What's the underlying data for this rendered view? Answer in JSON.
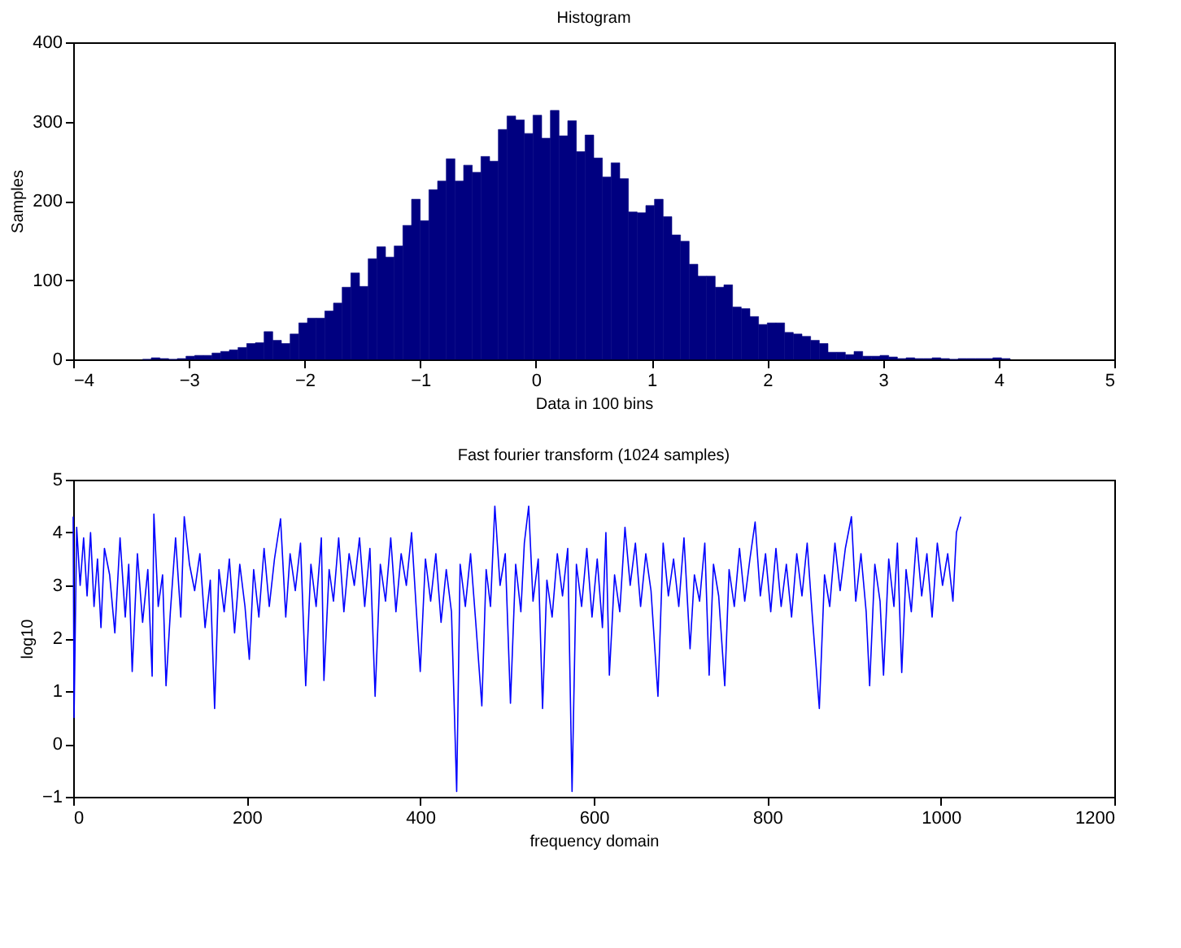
{
  "chart_data": [
    {
      "type": "histogram",
      "title": "Histogram",
      "xlabel": "Data in 100 bins",
      "ylabel": "Samples",
      "color": "#000080",
      "bins": [
        -3.4,
        -3.325,
        -3.25,
        -3.175,
        -3.1,
        -3.025,
        -2.95,
        -2.875,
        -2.8,
        -2.725,
        -2.65,
        -2.575,
        -2.5,
        -2.425,
        -2.35,
        -2.275,
        -2.2,
        -2.125,
        -2.05,
        -1.975,
        -1.9,
        -1.825,
        -1.75,
        -1.675,
        -1.6,
        -1.525,
        -1.45,
        -1.375,
        -1.3,
        -1.225,
        -1.15,
        -1.075,
        -1.0,
        -0.925,
        -0.85,
        -0.775,
        -0.7,
        -0.625,
        -0.55,
        -0.475,
        -0.4,
        -0.325,
        -0.25,
        -0.175,
        -0.1,
        -0.025,
        0.05,
        0.125,
        0.2,
        0.275,
        0.35,
        0.425,
        0.5,
        0.575,
        0.65,
        0.725,
        0.8,
        0.875,
        0.95,
        1.025,
        1.1,
        1.175,
        1.25,
        1.325,
        1.4,
        1.475,
        1.55,
        1.625,
        1.7,
        1.775,
        1.85,
        1.925,
        2.0,
        2.075,
        2.15,
        2.225,
        2.3,
        2.375,
        2.45,
        2.525,
        2.6,
        2.675,
        2.75,
        2.825,
        2.9,
        2.975,
        3.05,
        3.125,
        3.2,
        3.275,
        3.35,
        3.425,
        3.5,
        3.575,
        3.65,
        3.725,
        3.8,
        3.875,
        3.95,
        4.025,
        4.1
      ],
      "values": [
        0,
        2,
        1,
        0,
        1,
        4,
        5,
        5,
        8,
        10,
        12,
        15,
        20,
        21,
        35,
        24,
        20,
        32,
        46,
        52,
        52,
        61,
        71,
        91,
        109,
        92,
        127,
        142,
        129,
        143,
        169,
        202,
        175,
        214,
        225,
        253,
        225,
        245,
        236,
        256,
        250,
        290,
        307,
        302,
        285,
        308,
        279,
        314,
        282,
        301,
        262,
        283,
        254,
        230,
        248,
        228,
        186,
        185,
        194,
        202,
        180,
        157,
        149,
        120,
        105,
        105,
        91,
        94,
        66,
        64,
        54,
        44,
        46,
        46,
        34,
        32,
        29,
        24,
        20,
        9,
        9,
        6,
        10,
        4,
        4,
        5,
        3,
        1,
        2,
        1,
        1,
        2,
        1,
        0,
        1,
        1,
        1,
        1,
        2,
        1
      ],
      "xlim": [
        -4,
        5
      ],
      "xticks": [
        -4,
        -3,
        -2,
        -1,
        0,
        1,
        2,
        3,
        4,
        5
      ],
      "ylim": [
        0,
        400
      ],
      "yticks": [
        0,
        100,
        200,
        300,
        400
      ]
    },
    {
      "type": "line",
      "title": "Fast fourier transform (1024 samples)",
      "xlabel": "frequency domain",
      "ylabel": "log10",
      "x": [
        0,
        1,
        4,
        8,
        12,
        16,
        20,
        24,
        28,
        32,
        36,
        42,
        48,
        54,
        60,
        64,
        68,
        74,
        80,
        86,
        91,
        93,
        98,
        103,
        107,
        112,
        118,
        124,
        128,
        134,
        140,
        146,
        152,
        158,
        163,
        168,
        174,
        180,
        186,
        192,
        198,
        203,
        208,
        214,
        220,
        226,
        232,
        239,
        245,
        250,
        256,
        262,
        268,
        274,
        280,
        286,
        289,
        295,
        300,
        306,
        312,
        318,
        324,
        330,
        336,
        342,
        348,
        354,
        360,
        366,
        372,
        378,
        384,
        390,
        396,
        400,
        406,
        412,
        418,
        424,
        430,
        436,
        442,
        446,
        452,
        458,
        464,
        471,
        476,
        481,
        486,
        492,
        498,
        504,
        510,
        516,
        520,
        525,
        530,
        536,
        541,
        546,
        552,
        558,
        564,
        570,
        575,
        580,
        586,
        592,
        598,
        604,
        610,
        614,
        618,
        624,
        630,
        636,
        642,
        648,
        654,
        660,
        666,
        674,
        680,
        686,
        692,
        698,
        704,
        711,
        716,
        722,
        728,
        733,
        738,
        744,
        751,
        756,
        762,
        768,
        774,
        780,
        786,
        792,
        798,
        804,
        810,
        816,
        822,
        828,
        834,
        840,
        846,
        852,
        860,
        866,
        872,
        878,
        884,
        890,
        897,
        902,
        908,
        914,
        918,
        924,
        930,
        934,
        940,
        946,
        950,
        955,
        960,
        966,
        972,
        978,
        984,
        990,
        996,
        1002,
        1008,
        1014,
        1018,
        1023
      ],
      "series": [
        {
          "color": "#0000ff",
          "values": [
            4.3,
            0.5,
            4.1,
            3.0,
            3.9,
            2.8,
            4.0,
            2.6,
            3.5,
            2.2,
            3.7,
            3.2,
            2.1,
            3.9,
            2.4,
            3.4,
            1.37,
            3.6,
            2.3,
            3.3,
            1.28,
            4.35,
            2.6,
            3.2,
            1.1,
            2.5,
            3.9,
            2.4,
            4.3,
            3.4,
            2.9,
            3.6,
            2.2,
            3.1,
            0.67,
            3.3,
            2.5,
            3.5,
            2.1,
            3.4,
            2.6,
            1.6,
            3.3,
            2.4,
            3.7,
            2.6,
            3.5,
            4.26,
            2.4,
            3.6,
            2.9,
            3.8,
            1.1,
            3.4,
            2.6,
            3.9,
            1.2,
            3.3,
            2.7,
            3.9,
            2.5,
            3.6,
            3.0,
            3.9,
            2.6,
            3.7,
            0.9,
            3.4,
            2.7,
            3.9,
            2.5,
            3.6,
            3.0,
            4.0,
            2.4,
            1.37,
            3.5,
            2.7,
            3.6,
            2.3,
            3.3,
            2.5,
            -0.9,
            3.4,
            2.6,
            3.6,
            2.3,
            0.72,
            3.3,
            2.6,
            4.5,
            3.0,
            3.6,
            0.77,
            3.4,
            2.5,
            3.8,
            4.5,
            2.7,
            3.5,
            0.67,
            3.1,
            2.4,
            3.6,
            2.8,
            3.7,
            -0.9,
            3.4,
            2.6,
            3.7,
            2.4,
            3.5,
            2.2,
            4.0,
            1.3,
            3.2,
            2.5,
            4.1,
            3.0,
            3.8,
            2.6,
            3.6,
            2.9,
            0.9,
            3.8,
            2.8,
            3.5,
            2.6,
            3.9,
            1.8,
            3.2,
            2.7,
            3.8,
            1.3,
            3.4,
            2.8,
            1.1,
            3.3,
            2.6,
            3.7,
            2.7,
            3.5,
            4.2,
            2.8,
            3.6,
            2.5,
            3.7,
            2.6,
            3.4,
            2.4,
            3.6,
            2.8,
            3.8,
            2.4,
            0.67,
            3.2,
            2.6,
            3.8,
            2.9,
            3.7,
            4.3,
            2.7,
            3.6,
            2.5,
            1.1,
            3.4,
            2.7,
            1.3,
            3.5,
            2.6,
            3.8,
            1.35,
            3.3,
            2.5,
            3.9,
            2.8,
            3.6,
            2.4,
            3.8,
            3.0,
            3.6,
            2.7,
            4.0,
            4.3
          ]
        }
      ],
      "xlim": [
        0,
        1200
      ],
      "xticks": [
        0,
        200,
        400,
        600,
        800,
        1000,
        1200
      ],
      "ylim": [
        -1,
        5
      ],
      "yticks": [
        -1,
        0,
        1,
        2,
        3,
        4,
        5
      ]
    }
  ]
}
